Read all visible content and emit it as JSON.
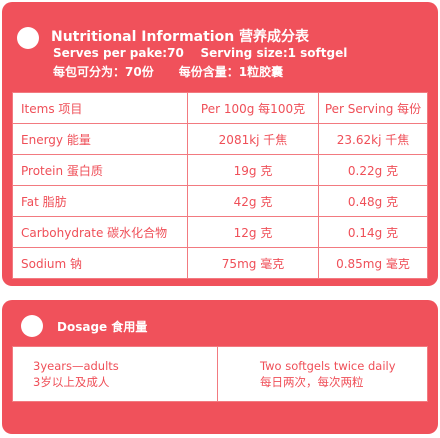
{
  "nutrition": {
    "title": "Nutritional Information 营养成分表",
    "serves_en": "Serves per pake:70    Serving size:1 softgel",
    "serves_cn": "每包可分为：70份      每份含量：1粒胶囊",
    "columns": [
      "Items 项目",
      "Per 100g 每100克",
      "Per Serving 每份"
    ],
    "rows": [
      {
        "item": "Energy 能量",
        "per100": "2081kj 千焦",
        "serving": "23.62kj 千焦"
      },
      {
        "item": "Protein 蛋白质",
        "per100": "19g 克",
        "serving": "0.22g 克"
      },
      {
        "item": "Fat 脂肪",
        "per100": "42g 克",
        "serving": "0.48g 克"
      },
      {
        "item": "Carbohydrate 碳水化合物",
        "per100": "12g 克",
        "serving": "0.14g 克"
      },
      {
        "item": "Sodium 钠",
        "per100": "75mg 毫克",
        "serving": "0.85mg 毫克"
      }
    ]
  },
  "dosage": {
    "title": "Dosage 食用量",
    "age_en": "3years—adults",
    "age_cn": "3岁以上及成人",
    "amount_en": "Two softgels twice daily",
    "amount_cn": "每日两次，每次两粒"
  },
  "colors": {
    "panel": "#f0515b",
    "text": "#ef4f58",
    "border": "#f27a80"
  }
}
